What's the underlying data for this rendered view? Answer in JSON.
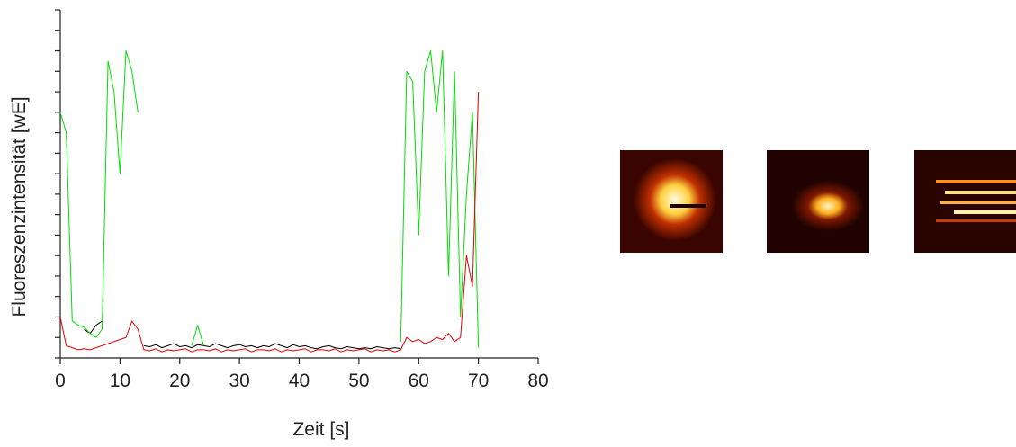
{
  "chart_data": {
    "type": "line",
    "xlabel": "Zeit [s]",
    "ylabel": "Fluoreszenzintensität [wE]",
    "xlim": [
      0,
      80
    ],
    "xticks": [
      0,
      10,
      20,
      30,
      40,
      50,
      60,
      70,
      80
    ],
    "ylim": [
      0,
      17
    ],
    "yticks": [
      0,
      1,
      2,
      3,
      4,
      5,
      6,
      7,
      8,
      9,
      10,
      11,
      12,
      13,
      14,
      15,
      16,
      17
    ],
    "x": [
      0,
      1,
      2,
      3,
      4,
      5,
      6,
      7,
      8,
      9,
      10,
      11,
      12,
      13,
      14,
      15,
      16,
      17,
      18,
      19,
      20,
      21,
      22,
      23,
      24,
      25,
      26,
      27,
      28,
      29,
      30,
      31,
      32,
      33,
      34,
      35,
      36,
      37,
      38,
      39,
      40,
      41,
      42,
      43,
      44,
      45,
      46,
      47,
      48,
      49,
      50,
      51,
      52,
      53,
      54,
      55,
      56,
      57,
      58,
      59,
      60,
      61,
      62,
      63,
      64,
      65,
      66,
      67,
      68,
      69,
      70
    ],
    "series": [
      {
        "color": "#000000",
        "values": [
          null,
          null,
          null,
          null,
          1.4,
          1.2,
          1.6,
          1.8,
          null,
          null,
          null,
          null,
          null,
          null,
          0.6,
          0.55,
          0.65,
          0.5,
          0.6,
          0.7,
          0.55,
          0.6,
          0.5,
          0.65,
          0.6,
          0.55,
          0.7,
          0.6,
          0.5,
          0.6,
          0.65,
          0.55,
          0.6,
          0.5,
          0.6,
          0.55,
          0.7,
          0.6,
          0.5,
          0.65,
          0.55,
          0.6,
          0.5,
          0.45,
          0.55,
          0.6,
          0.5,
          0.45,
          0.55,
          0.5,
          0.45,
          0.5,
          0.45,
          0.55,
          0.5,
          0.45,
          0.5,
          0.45,
          null,
          null,
          null,
          null,
          null,
          null,
          null,
          null,
          null,
          null,
          null,
          null,
          null
        ]
      },
      {
        "color": "#00dd00",
        "values": [
          12,
          11,
          1.8,
          1.6,
          1.5,
          1.2,
          1.0,
          1.4,
          14.5,
          13,
          9,
          15,
          14,
          12,
          null,
          null,
          null,
          null,
          null,
          null,
          null,
          null,
          0.6,
          1.6,
          0.6,
          null,
          null,
          null,
          null,
          null,
          null,
          null,
          null,
          null,
          null,
          null,
          null,
          null,
          null,
          null,
          null,
          null,
          null,
          null,
          null,
          null,
          null,
          null,
          null,
          null,
          null,
          null,
          null,
          null,
          null,
          null,
          null,
          0.8,
          14,
          13.5,
          6,
          14,
          15,
          12,
          15,
          4,
          14,
          2,
          8,
          12,
          0.5
        ]
      },
      {
        "color": "#e00000",
        "values": [
          2.0,
          0.6,
          0.5,
          0.4,
          0.45,
          0.4,
          0.5,
          0.6,
          0.7,
          0.8,
          0.9,
          1.0,
          1.8,
          1.4,
          0.4,
          0.35,
          0.45,
          0.3,
          0.4,
          0.35,
          0.4,
          0.45,
          0.3,
          0.4,
          0.4,
          0.35,
          0.45,
          0.3,
          0.4,
          0.35,
          0.4,
          0.45,
          0.3,
          0.4,
          0.4,
          0.35,
          0.45,
          0.3,
          0.4,
          0.35,
          0.4,
          0.45,
          0.3,
          0.4,
          0.4,
          0.35,
          0.45,
          0.3,
          0.4,
          0.35,
          0.4,
          0.45,
          0.3,
          0.4,
          0.35,
          0.4,
          0.3,
          0.4,
          1.0,
          0.8,
          0.9,
          0.7,
          0.8,
          1.0,
          0.9,
          1.2,
          0.8,
          1.0,
          5,
          3.5,
          13
        ]
      }
    ]
  }
}
